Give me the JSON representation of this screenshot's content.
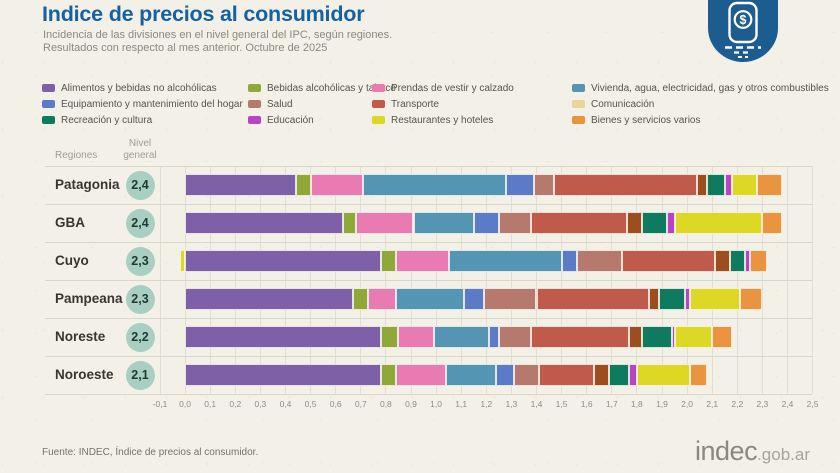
{
  "header": {
    "title": "Indice de precios al consumidor",
    "subtitle_line1": "Incidencia de las divisiones en el nivel general del IPC, según regiones.",
    "subtitle_line2": "Resultados con respecto al mes anterior. Octubre de 2025",
    "badge_icon": "peso-price-tag-icon",
    "badge_color": "#1d5c8e",
    "title_color": "#1561a2"
  },
  "table": {
    "regions_header": "Regiones",
    "level_header_line1": "Nivel",
    "level_header_line2": "general",
    "level_badge_color": "#a9cfc3"
  },
  "chart_data": {
    "type": "bar",
    "orientation": "horizontal-stacked",
    "title": "Incidencia de las divisiones en el nivel general del IPC, según regiones",
    "axis": {
      "min": -0.1,
      "max": 2.5,
      "step": 0.1,
      "grid": true
    },
    "x_tick_labels": [
      "-0,1",
      "0,0",
      "0,1",
      "0,2",
      "0,3",
      "0,4",
      "0,5",
      "0,6",
      "0,7",
      "0,8",
      "0,9",
      "1,0",
      "1,1",
      "1,2",
      "1,3",
      "1,4",
      "1,5",
      "1,6",
      "1,7",
      "1,8",
      "1,9",
      "2,0",
      "2,1",
      "2,2",
      "2,3",
      "2,4",
      "2,5"
    ],
    "divisions": [
      {
        "id": "alimentos",
        "label": "Alimentos y bebidas no alcohólicas",
        "color": "#7e60a8"
      },
      {
        "id": "bebidas_alc",
        "label": "Bebidas alcohólicas y tabaco",
        "color": "#8fa839"
      },
      {
        "id": "prendas",
        "label": "Prendas de vestir y calzado",
        "color": "#ea7ab2"
      },
      {
        "id": "vivienda",
        "label": "Vivienda, agua, electricidad, gas y otros combustibles",
        "color": "#5595b4"
      },
      {
        "id": "equipamiento",
        "label": "Equipamiento y mantenimiento del hogar",
        "color": "#5b7ac8"
      },
      {
        "id": "salud",
        "label": "Salud",
        "color": "#b5796d"
      },
      {
        "id": "transporte",
        "label": "Transporte",
        "color": "#c05a4b"
      },
      {
        "id": "comunicacion",
        "label": "Comunicación",
        "color": "#e9d49a",
        "bar_color": "#9c4e1e"
      },
      {
        "id": "recreacion",
        "label": "Recreación y cultura",
        "color": "#0e7a5e"
      },
      {
        "id": "educacion",
        "label": "Educación",
        "color": "#b844c4"
      },
      {
        "id": "restaurantes",
        "label": "Restaurantes y hoteles",
        "color": "#dcd824"
      },
      {
        "id": "bienes",
        "label": "Bienes y servicios varios",
        "color": "#eb9440"
      }
    ],
    "legend_columns": [
      [
        0,
        4,
        8
      ],
      [
        1,
        5,
        9
      ],
      [
        2,
        6,
        10
      ],
      [
        3,
        7,
        11
      ]
    ],
    "regions": [
      {
        "name": "Patagonia",
        "level": "2,4",
        "values": [
          0.44,
          0.06,
          0.21,
          0.57,
          0.11,
          0.08,
          0.57,
          0.04,
          0.07,
          0.03,
          0.1,
          0.1
        ]
      },
      {
        "name": "GBA",
        "level": "2,4",
        "values": [
          0.63,
          0.05,
          0.23,
          0.24,
          0.1,
          0.13,
          0.38,
          0.06,
          0.1,
          0.03,
          0.35,
          0.08
        ]
      },
      {
        "name": "Cuyo",
        "level": "2,3",
        "values": [
          0.78,
          0.06,
          0.21,
          0.45,
          0.06,
          0.18,
          0.37,
          0.06,
          0.06,
          0.02,
          -0.02,
          0.07
        ]
      },
      {
        "name": "Pampeana",
        "level": "2,3",
        "values": [
          0.67,
          0.06,
          0.11,
          0.27,
          0.08,
          0.21,
          0.45,
          0.04,
          0.1,
          0.02,
          0.2,
          0.09
        ]
      },
      {
        "name": "Noreste",
        "level": "2,2",
        "values": [
          0.78,
          0.07,
          0.14,
          0.22,
          0.04,
          0.13,
          0.39,
          0.05,
          0.12,
          0.01,
          0.15,
          0.08
        ]
      },
      {
        "name": "Noroeste",
        "level": "2,1",
        "values": [
          0.78,
          0.06,
          0.2,
          0.2,
          0.07,
          0.1,
          0.22,
          0.06,
          0.08,
          0.03,
          0.21,
          0.07
        ]
      }
    ]
  },
  "footer": {
    "source": "Fuente: INDEC, Índice de precios al consumidor.",
    "logo_main": "indec",
    "logo_suffix": ".gob.ar"
  }
}
